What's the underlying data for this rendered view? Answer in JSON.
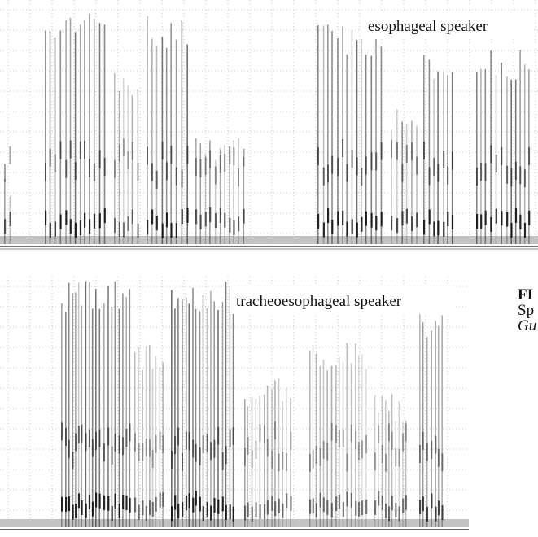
{
  "figure": {
    "top_label": "esophageal speaker",
    "bottom_label": "tracheoesophageal speaker"
  },
  "caption": {
    "line1": "FI",
    "line2": "Sp",
    "line3": "Gu"
  }
}
